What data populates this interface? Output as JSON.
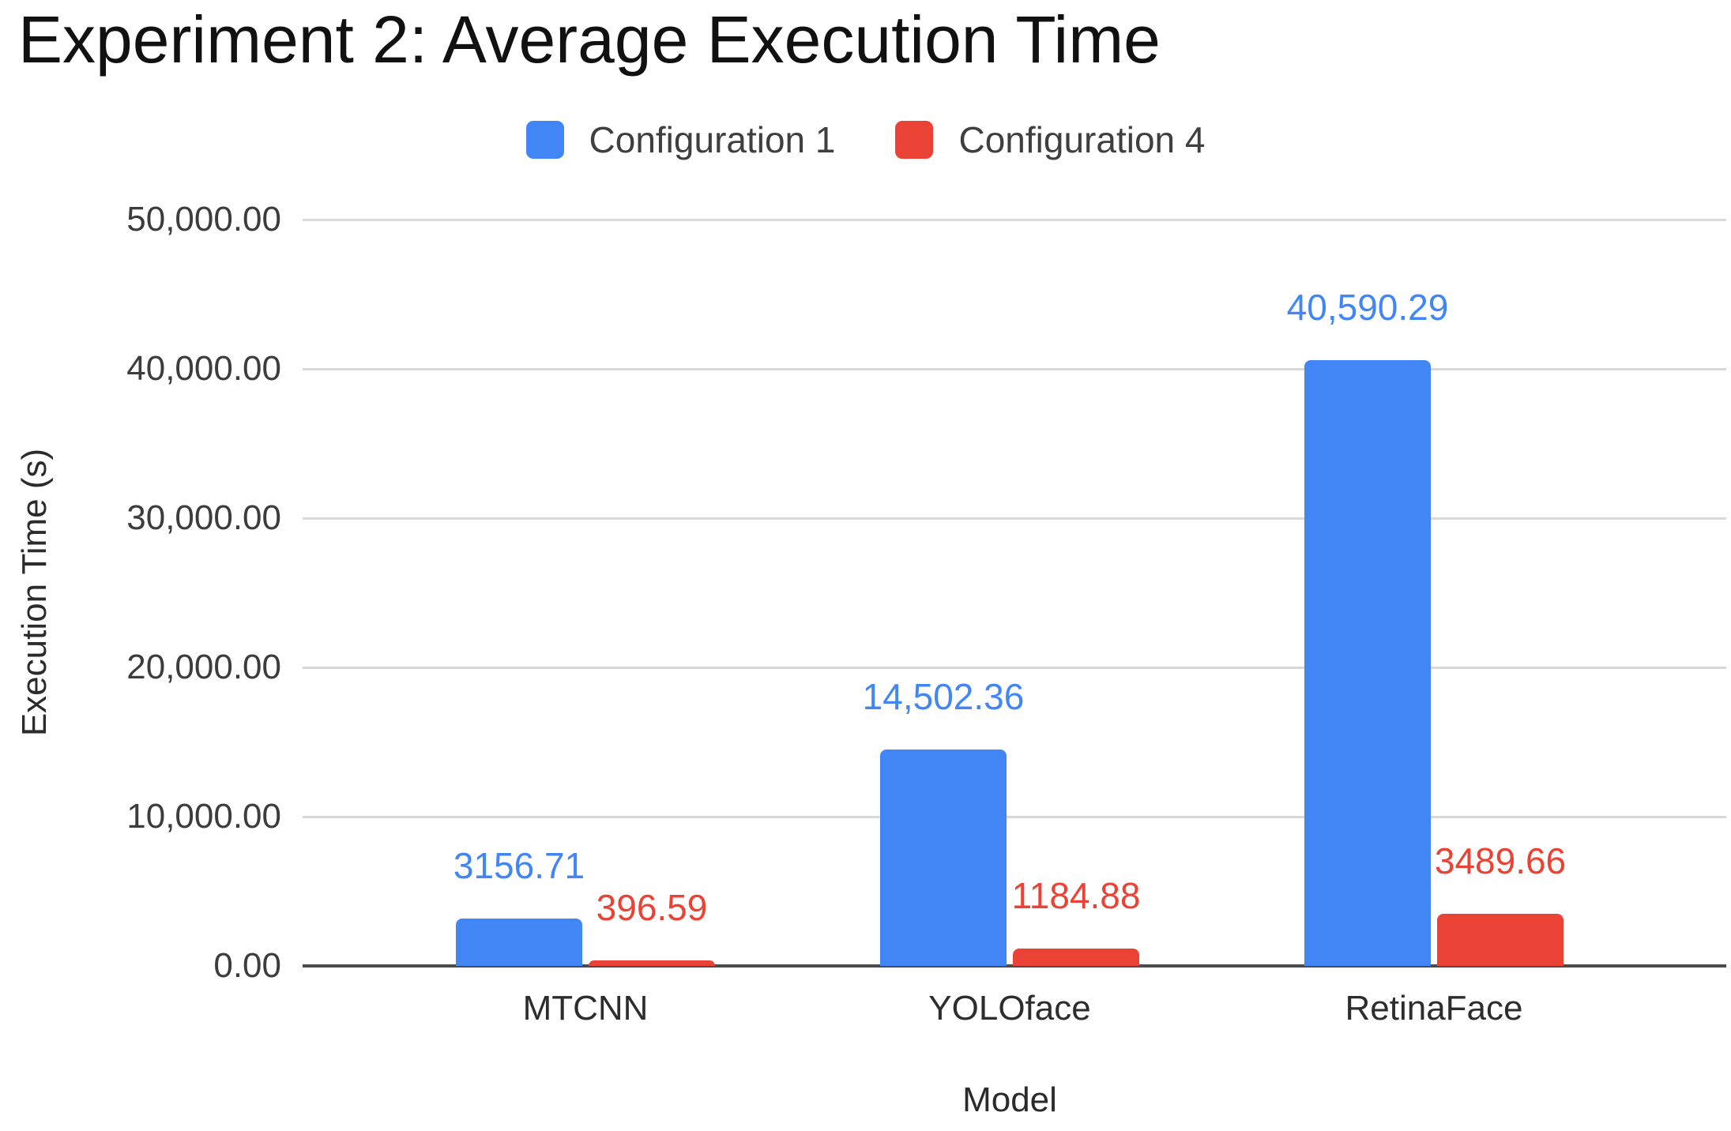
{
  "chart_data": {
    "type": "bar",
    "title": "Experiment 2: Average Execution Time",
    "xlabel": "Model",
    "ylabel": "Execution Time (s)",
    "categories": [
      "MTCNN",
      "YOLOface",
      "RetinaFace"
    ],
    "series": [
      {
        "name": "Configuration 1",
        "color": "#4285F4",
        "values": [
          3156.71,
          14502.36,
          40590.29
        ],
        "value_labels": [
          "3156.71",
          "14,502.36",
          "40,590.29"
        ]
      },
      {
        "name": "Configuration 4",
        "color": "#EA4335",
        "values": [
          396.59,
          1184.88,
          3489.66
        ],
        "value_labels": [
          "396.59",
          "1184.88",
          "3489.66"
        ]
      }
    ],
    "ylim": [
      0,
      50000
    ],
    "yticks": [
      {
        "value": 0,
        "label": "0.00"
      },
      {
        "value": 10000,
        "label": "10,000.00"
      },
      {
        "value": 20000,
        "label": "20,000.00"
      },
      {
        "value": 30000,
        "label": "30,000.00"
      },
      {
        "value": 40000,
        "label": "40,000.00"
      },
      {
        "value": 50000,
        "label": "50,000.00"
      }
    ],
    "legend_position": "top",
    "grid": true
  }
}
